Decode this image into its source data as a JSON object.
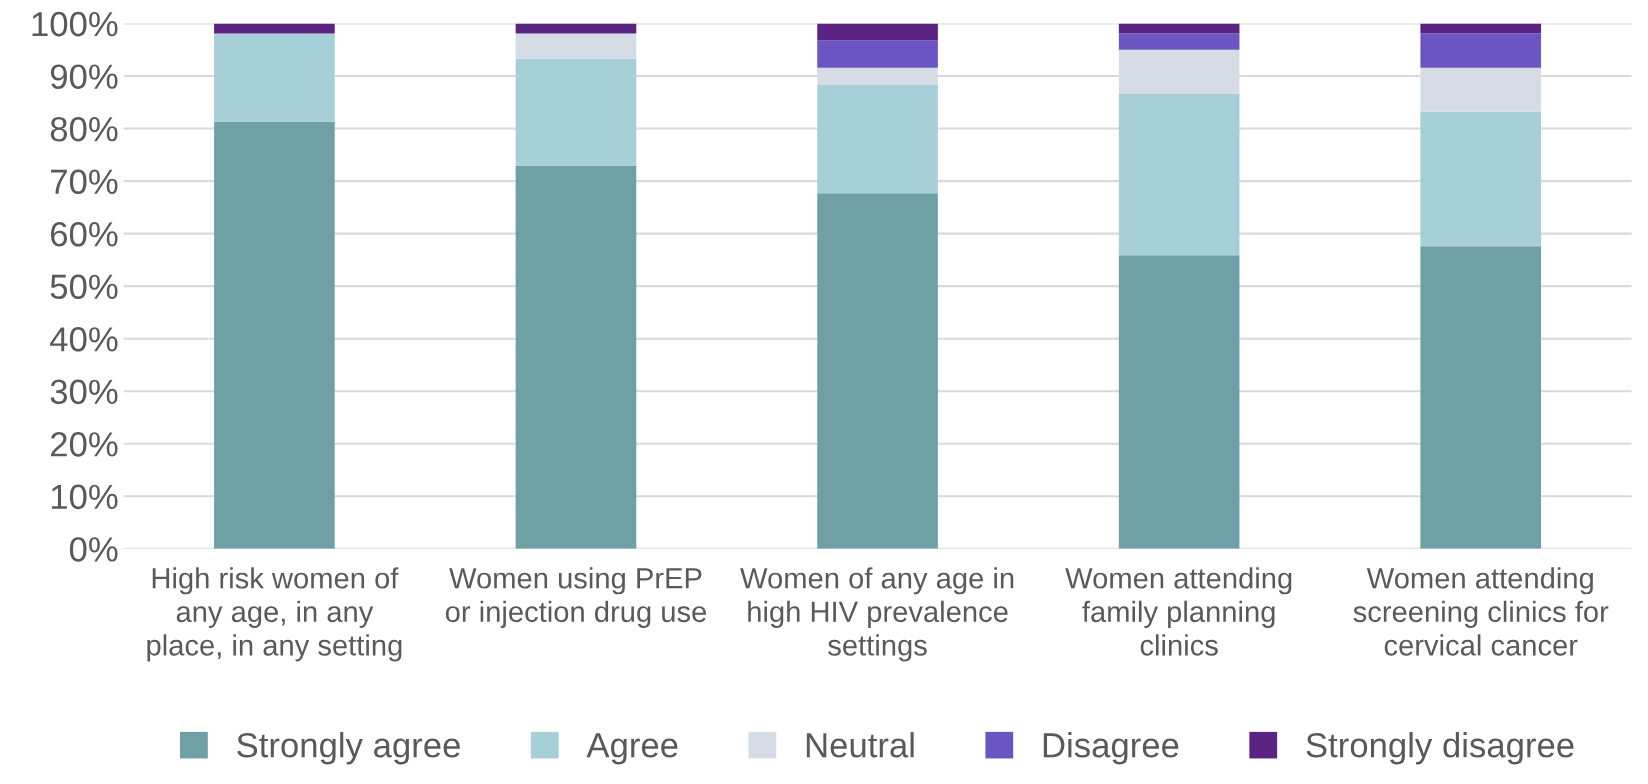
{
  "chart_data": {
    "type": "bar",
    "stacked": true,
    "categories": [
      "High risk women of any age, in any place, in any setting",
      "Women using PrEP or injection drug use",
      "Women of any age in high HIV prevalence settings",
      "Women attending family planning clinics",
      "Women attending screening clinics for cervical cancer"
    ],
    "series": [
      {
        "name": "Strongly agree",
        "color": "#6fa0a6",
        "values": [
          81.3,
          72.9,
          67.7,
          55.9,
          57.6
        ]
      },
      {
        "name": "Agree",
        "color": "#a7cfd8",
        "values": [
          16.8,
          20.4,
          20.7,
          30.7,
          25.6
        ]
      },
      {
        "name": "Neutral",
        "color": "#d6dce5",
        "values": [
          0,
          4.8,
          3.2,
          8.4,
          8.4
        ]
      },
      {
        "name": "Disagree",
        "color": "#6a55c2",
        "values": [
          0,
          0,
          5.2,
          3.1,
          6.5
        ]
      },
      {
        "name": "Strongly disagree",
        "color": "#5c2482",
        "values": [
          1.9,
          1.9,
          3.2,
          1.9,
          1.9
        ]
      }
    ],
    "ylim": [
      0,
      100
    ],
    "yticks": [
      {
        "value": 0,
        "label": "0%"
      },
      {
        "value": 10,
        "label": "10%"
      },
      {
        "value": 20,
        "label": "20%"
      },
      {
        "value": 30,
        "label": "30%"
      },
      {
        "value": 40,
        "label": "40%"
      },
      {
        "value": 50,
        "label": "50%"
      },
      {
        "value": 60,
        "label": "60%"
      },
      {
        "value": 70,
        "label": "70%"
      },
      {
        "value": 80,
        "label": "80%"
      },
      {
        "value": 90,
        "label": "90%"
      },
      {
        "value": 100,
        "label": "100%"
      }
    ],
    "grid": "y",
    "legend": "bottom"
  }
}
